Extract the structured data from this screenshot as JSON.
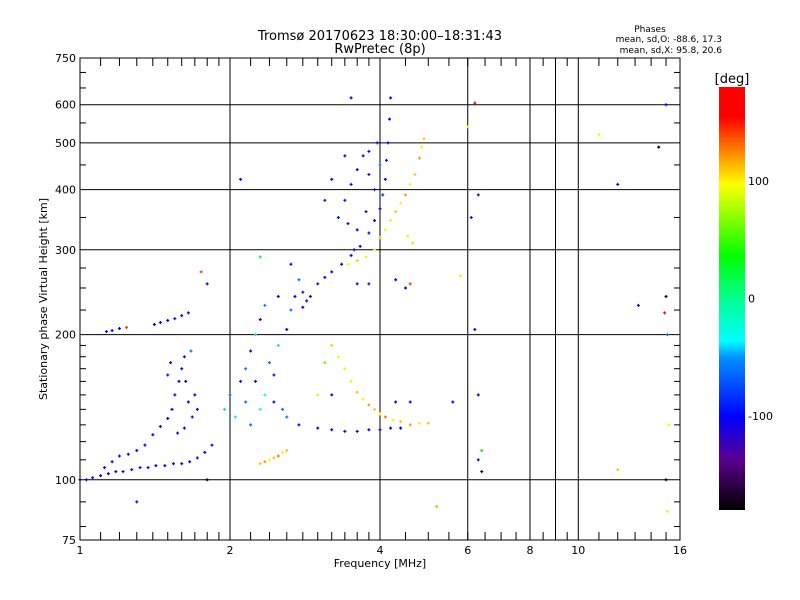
{
  "chart_data": {
    "type": "scatter",
    "title": "Tromsø 20170623 18:30:00–18:31:43",
    "subtitle": "RwPretec (8p)",
    "xlabel": "Frequency [MHz]",
    "ylabel": "Stationary phase Virtual Height [km]",
    "xscale": "log",
    "yscale": "log",
    "xlim": [
      1,
      16
    ],
    "ylim": [
      75,
      750
    ],
    "xticks": [
      1,
      2,
      4,
      6,
      8,
      10,
      16
    ],
    "xtick_labels": [
      "1",
      "2",
      "4",
      "6",
      "8",
      "10",
      "16"
    ],
    "yticks": [
      75,
      100,
      200,
      300,
      400,
      500,
      600,
      750
    ],
    "ytick_labels": [
      "75",
      "100",
      "200",
      "300",
      "400",
      "500",
      "600",
      "750"
    ],
    "grid": true,
    "stats": {
      "title": "Phases",
      "o_line": "mean, sd,O: -88.6, 17.3",
      "x_line": "mean, sd,X:  95.8, 20.6"
    },
    "colorbar": {
      "label": "[deg]",
      "range": [
        -180,
        180
      ],
      "ticks": [
        100,
        0,
        -100
      ],
      "tick_labels": [
        "100",
        "0",
        "-100"
      ]
    },
    "points_format": [
      "frequency_MHz",
      "height_km",
      "phase_deg"
    ],
    "points": [
      [
        1.0,
        100,
        -100
      ],
      [
        1.03,
        100,
        -100
      ],
      [
        1.06,
        101,
        -100
      ],
      [
        1.1,
        102,
        -100
      ],
      [
        1.14,
        103,
        -100
      ],
      [
        1.18,
        104,
        -100
      ],
      [
        1.22,
        104,
        -100
      ],
      [
        1.27,
        105,
        -100
      ],
      [
        1.32,
        106,
        -100
      ],
      [
        1.37,
        106,
        -100
      ],
      [
        1.42,
        107,
        -100
      ],
      [
        1.48,
        107,
        -100
      ],
      [
        1.54,
        108,
        -100
      ],
      [
        1.6,
        108,
        -100
      ],
      [
        1.66,
        109,
        -100
      ],
      [
        1.72,
        111,
        -100
      ],
      [
        1.78,
        114,
        -100
      ],
      [
        1.84,
        118,
        -100
      ],
      [
        1.12,
        106,
        -100
      ],
      [
        1.16,
        109,
        -100
      ],
      [
        1.2,
        112,
        -100
      ],
      [
        1.25,
        113,
        -100
      ],
      [
        1.3,
        115,
        -100
      ],
      [
        1.35,
        118,
        -100
      ],
      [
        1.4,
        124,
        -100
      ],
      [
        1.45,
        129,
        -100
      ],
      [
        1.5,
        134,
        -100
      ],
      [
        1.53,
        140,
        -100
      ],
      [
        1.55,
        150,
        -100
      ],
      [
        1.58,
        160,
        -100
      ],
      [
        1.6,
        170,
        -100
      ],
      [
        1.62,
        180,
        -95
      ],
      [
        1.65,
        145,
        -100
      ],
      [
        1.68,
        135,
        -105
      ],
      [
        1.57,
        125,
        -100
      ],
      [
        1.62,
        128,
        -110
      ],
      [
        1.5,
        165,
        -100
      ],
      [
        1.52,
        175,
        -100
      ],
      [
        1.7,
        150,
        -100
      ],
      [
        1.72,
        140,
        -100
      ],
      [
        1.63,
        160,
        -150
      ],
      [
        1.67,
        185,
        -60
      ],
      [
        1.13,
        203,
        -100
      ],
      [
        1.16,
        204,
        -100
      ],
      [
        1.2,
        206,
        -100
      ],
      [
        1.24,
        207,
        140
      ],
      [
        1.41,
        210,
        -100
      ],
      [
        1.45,
        212,
        -100
      ],
      [
        1.5,
        214,
        -100
      ],
      [
        1.55,
        216,
        -100
      ],
      [
        1.6,
        219,
        -100
      ],
      [
        1.65,
        222,
        -100
      ],
      [
        1.3,
        90,
        -100
      ],
      [
        1.8,
        100,
        -180
      ],
      [
        1.75,
        270,
        140
      ],
      [
        1.8,
        255,
        -100
      ],
      [
        1.95,
        140,
        -40
      ],
      [
        2.0,
        150,
        -60
      ],
      [
        2.05,
        135,
        -40
      ],
      [
        2.1,
        160,
        -100
      ],
      [
        2.15,
        170,
        -60
      ],
      [
        2.2,
        185,
        -100
      ],
      [
        2.25,
        200,
        -40
      ],
      [
        2.3,
        215,
        -100
      ],
      [
        2.35,
        150,
        -30
      ],
      [
        2.4,
        175,
        -60
      ],
      [
        2.45,
        165,
        -100
      ],
      [
        2.5,
        190,
        -40
      ],
      [
        2.55,
        140,
        -60
      ],
      [
        2.6,
        205,
        -100
      ],
      [
        2.65,
        225,
        -60
      ],
      [
        2.7,
        240,
        -100
      ],
      [
        2.75,
        260,
        -60
      ],
      [
        2.8,
        245,
        -100
      ],
      [
        2.85,
        235,
        -100
      ],
      [
        2.2,
        130,
        -60
      ],
      [
        2.3,
        140,
        -30
      ],
      [
        2.45,
        145,
        -100
      ],
      [
        2.6,
        135,
        -60
      ],
      [
        2.75,
        130,
        -100
      ],
      [
        2.25,
        160,
        -100
      ],
      [
        2.15,
        145,
        -60
      ],
      [
        2.35,
        230,
        -60
      ],
      [
        2.5,
        240,
        -100
      ],
      [
        2.65,
        280,
        -100
      ],
      [
        2.1,
        420,
        -100
      ],
      [
        2.3,
        290,
        20
      ],
      [
        2.3,
        108,
        110
      ],
      [
        2.35,
        109,
        120
      ],
      [
        2.4,
        110,
        100
      ],
      [
        2.45,
        111,
        110
      ],
      [
        2.5,
        112,
        130
      ],
      [
        2.55,
        114,
        100
      ],
      [
        2.6,
        115,
        110
      ],
      [
        2.8,
        228,
        -100
      ],
      [
        2.9,
        240,
        -100
      ],
      [
        3.0,
        255,
        -100
      ],
      [
        3.1,
        263,
        -100
      ],
      [
        3.2,
        270,
        -100
      ],
      [
        3.35,
        280,
        -100
      ],
      [
        3.5,
        292,
        -100
      ],
      [
        3.65,
        305,
        -110
      ],
      [
        3.8,
        325,
        -100
      ],
      [
        3.9,
        345,
        -100
      ],
      [
        4.0,
        365,
        -100
      ],
      [
        4.05,
        390,
        -80
      ],
      [
        4.1,
        420,
        -100
      ],
      [
        4.12,
        460,
        -100
      ],
      [
        4.15,
        500,
        -100
      ],
      [
        4.18,
        560,
        -100
      ],
      [
        4.2,
        620,
        -100
      ],
      [
        3.3,
        350,
        -100
      ],
      [
        3.4,
        380,
        -120
      ],
      [
        3.5,
        410,
        -100
      ],
      [
        3.6,
        440,
        -100
      ],
      [
        3.7,
        470,
        -100
      ],
      [
        3.8,
        430,
        -120
      ],
      [
        3.9,
        400,
        -100
      ],
      [
        3.75,
        360,
        -140
      ],
      [
        3.6,
        330,
        -100
      ],
      [
        3.45,
        340,
        -140
      ],
      [
        3.55,
        300,
        -100
      ],
      [
        3.8,
        480,
        -100
      ],
      [
        4.0,
        450,
        -60
      ],
      [
        3.95,
        500,
        -100
      ],
      [
        3.5,
        620,
        -100
      ],
      [
        3.4,
        470,
        -100
      ],
      [
        3.2,
        420,
        -100
      ],
      [
        3.1,
        380,
        -120
      ],
      [
        3.6,
        255,
        -100
      ],
      [
        3.8,
        255,
        -100
      ],
      [
        4.3,
        260,
        -100
      ],
      [
        4.5,
        250,
        -100
      ],
      [
        3.45,
        280,
        100
      ],
      [
        3.6,
        285,
        110
      ],
      [
        3.75,
        290,
        100
      ],
      [
        3.9,
        300,
        100
      ],
      [
        4.0,
        318,
        110
      ],
      [
        4.1,
        330,
        100
      ],
      [
        4.2,
        345,
        100
      ],
      [
        4.3,
        360,
        110
      ],
      [
        4.4,
        375,
        100
      ],
      [
        4.5,
        390,
        120
      ],
      [
        4.6,
        410,
        100
      ],
      [
        4.7,
        430,
        110
      ],
      [
        4.8,
        465,
        120
      ],
      [
        4.85,
        490,
        100
      ],
      [
        4.9,
        510,
        110
      ],
      [
        4.55,
        320,
        100
      ],
      [
        4.65,
        310,
        80
      ],
      [
        4.6,
        255,
        140
      ],
      [
        3.0,
        128,
        -100
      ],
      [
        3.2,
        127,
        -100
      ],
      [
        3.4,
        126,
        -100
      ],
      [
        3.6,
        126,
        -100
      ],
      [
        3.8,
        127,
        -100
      ],
      [
        4.0,
        127,
        -100
      ],
      [
        4.2,
        128,
        -100
      ],
      [
        4.4,
        128,
        -100
      ],
      [
        4.6,
        130,
        120
      ],
      [
        4.8,
        131,
        100
      ],
      [
        5.0,
        131,
        110
      ],
      [
        4.3,
        145,
        -100
      ],
      [
        4.6,
        145,
        -100
      ],
      [
        3.2,
        190,
        110
      ],
      [
        3.3,
        180,
        100
      ],
      [
        3.4,
        170,
        90
      ],
      [
        3.5,
        160,
        100
      ],
      [
        3.6,
        152,
        110
      ],
      [
        3.7,
        147,
        100
      ],
      [
        3.8,
        143,
        120
      ],
      [
        3.9,
        140,
        110
      ],
      [
        4.0,
        137,
        100
      ],
      [
        4.1,
        135,
        130
      ],
      [
        4.25,
        133,
        100
      ],
      [
        4.4,
        132,
        110
      ],
      [
        3.1,
        175,
        60
      ],
      [
        3.0,
        150,
        90
      ],
      [
        3.2,
        150,
        -100
      ],
      [
        5.6,
        145,
        -100
      ],
      [
        6.3,
        150,
        -100
      ],
      [
        6.3,
        110,
        -100
      ],
      [
        6.4,
        104,
        -180
      ],
      [
        6.2,
        205,
        -100
      ],
      [
        6.2,
        605,
        170
      ],
      [
        6.0,
        540,
        100
      ],
      [
        6.1,
        350,
        -100
      ],
      [
        5.2,
        88,
        60
      ],
      [
        5.8,
        265,
        100
      ],
      [
        6.3,
        390,
        -130
      ],
      [
        6.4,
        115,
        40
      ],
      [
        11,
        520,
        100
      ],
      [
        12,
        105,
        110
      ],
      [
        12,
        410,
        -100
      ],
      [
        13.2,
        230,
        -100
      ],
      [
        14.5,
        490,
        -180
      ],
      [
        15,
        240,
        -180
      ],
      [
        15,
        600,
        -100
      ],
      [
        15.1,
        200,
        -60
      ],
      [
        15.2,
        130,
        100
      ],
      [
        15,
        100,
        -180
      ],
      [
        15.1,
        86,
        100
      ],
      [
        14.9,
        222,
        160
      ]
    ]
  }
}
